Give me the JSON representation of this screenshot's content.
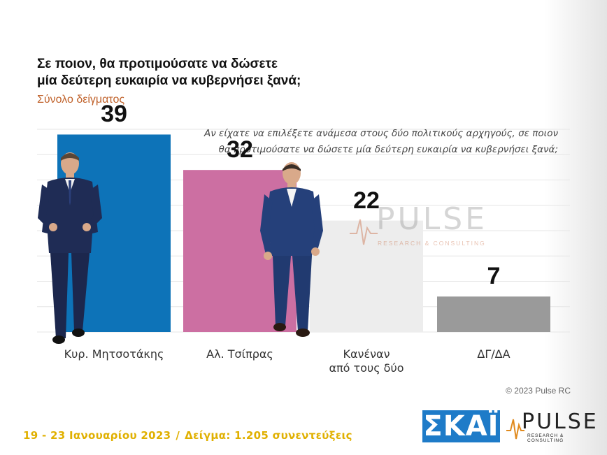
{
  "header": {
    "title_line1": "Σε ποιον, θα προτιμούσατε να δώσετε",
    "title_line2": "μία δεύτερη ευκαιρία να κυβερνήσει ξανά;",
    "subtitle": "Σύνολο δείγματος"
  },
  "question": {
    "line1": "Αν είχατε να επιλέξετε ανάμεσα στους δύο πολιτικούς αρχηγούς, σε ποιον",
    "line2": "θα προτιμούσατε να δώσετε μία δεύτερη ευκαιρία να κυβερνήσει ξανά;"
  },
  "chart_data": {
    "type": "bar",
    "title": "Σε ποιον, θα προτιμούσατε να δώσετε μία δεύτερη ευκαιρία να κυβερνήσει ξανά;",
    "subtitle": "Σύνολο δείγματος",
    "categories": [
      "Κυρ. Μητσοτάκης",
      "Αλ. Τσίπρας",
      "Κανέναν από τους δύο",
      "ΔΓ/ΔΑ"
    ],
    "category_lines": [
      [
        "Κυρ. Μητσοτάκης"
      ],
      [
        "Αλ. Τσίπρας"
      ],
      [
        "Κανέναν",
        "από τους δύο"
      ],
      [
        "ΔΓ/ΔΑ"
      ]
    ],
    "values": [
      39,
      32,
      22,
      7
    ],
    "colors": [
      "#0d73b8",
      "#cc6fa2",
      "#ededed",
      "#9a9a9a"
    ],
    "ylim": [
      0,
      45
    ],
    "grid": true,
    "xlabel": "",
    "ylabel": ""
  },
  "footer": {
    "dates": "19 - 23 Ιανουαρίου 2023",
    "separator": "/",
    "sample": "Δείγμα: 1.205 συνεντεύξεις",
    "copyright": "© 2023 Pulse RC"
  },
  "logos": {
    "skai": "ΣΚΑΪ",
    "pulse_word": "PULSE",
    "pulse_tagline": "RESEARCH & CONSULTING",
    "watermark_word": "PULSE",
    "watermark_tagline": "RESEARCH & CONSULTING"
  }
}
